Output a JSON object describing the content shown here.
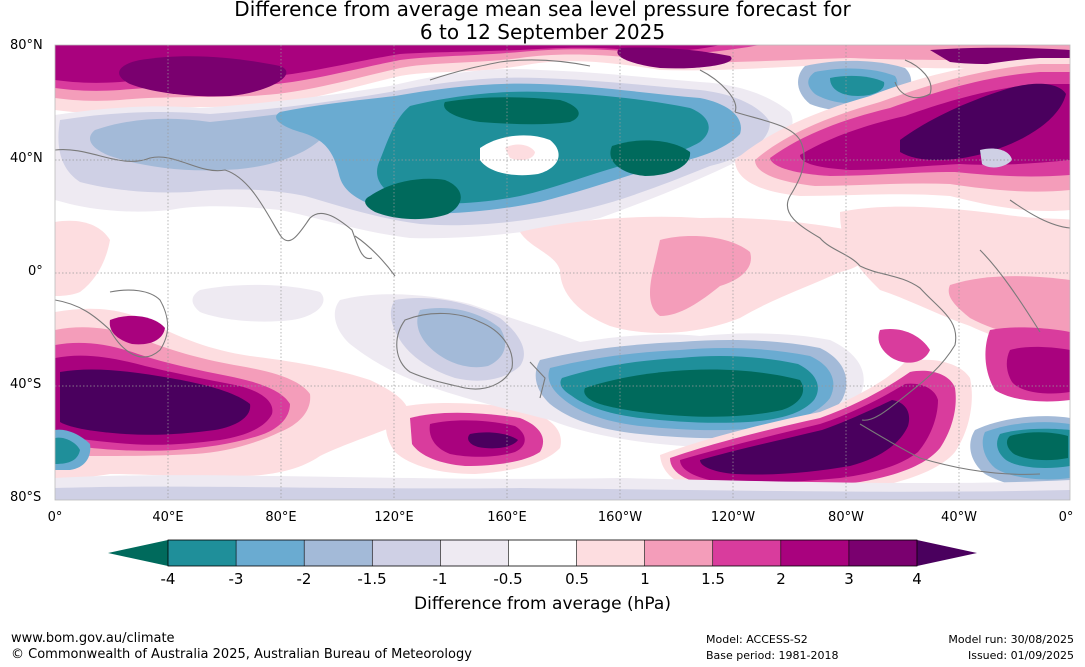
{
  "title_line1": "Difference from average mean sea level pressure forecast for",
  "title_line2": "6 to 12 September 2025",
  "lat_labels": [
    "80°N",
    "40°N",
    "0°",
    "40°S",
    "80°S"
  ],
  "lon_labels": [
    "0°",
    "40°E",
    "80°E",
    "120°E",
    "160°E",
    "160°W",
    "120°W",
    "80°W",
    "40°W",
    "0°"
  ],
  "colorbar": {
    "ticks": [
      "-4",
      "-3",
      "-2",
      "-1.5",
      "-1",
      "-0.5",
      "0.5",
      "1",
      "1.5",
      "2",
      "3",
      "4"
    ],
    "title": "Difference from average (hPa)",
    "colors": {
      "below_min": "#006a5c",
      "bins": [
        "#1f8f9a",
        "#6aabd1",
        "#a3bad8",
        "#cfd0e5",
        "#eeeaf2",
        "#ffffff",
        "#fddde0",
        "#f49dba",
        "#d93c9d",
        "#a9027e",
        "#7a006f"
      ],
      "above_max": "#4a005e"
    }
  },
  "footer": {
    "website": "www.bom.gov.au/climate",
    "copyright": "© Commonwealth of Australia 2025, Australian Bureau of Meteorology",
    "model": "Model: ACCESS-S2",
    "base_period": "Base period: 1981-2018",
    "model_run": "Model run: 30/08/2025",
    "issued": "Issued: 01/09/2025"
  }
}
